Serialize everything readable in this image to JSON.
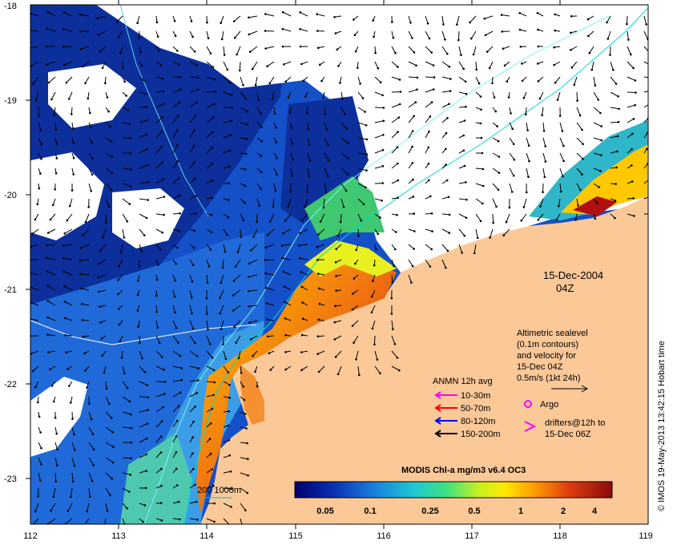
{
  "map": {
    "date_label": "15-Dec-2004",
    "time_label": "04Z",
    "credit": "© IMOS 19-May-2013 13:42:15 Hobart time",
    "x_ticks": [
      "112",
      "113",
      "114",
      "115",
      "116",
      "117",
      "118",
      "119"
    ],
    "y_ticks": [
      "-18",
      "-19",
      "-20",
      "-21",
      "-22",
      "-23"
    ]
  },
  "altimetry": {
    "line1": "Altimetric sealevel",
    "line2": "(0.1m contours)",
    "line3": "and velocity for",
    "line4": "15-Dec 04Z",
    "scale_label": "0.5m/s (1kt 24h)"
  },
  "anmn": {
    "title": "ANMN 12h avg",
    "items": [
      {
        "label": "10-30m",
        "color": "#ff00ff"
      },
      {
        "label": "50-70m",
        "color": "#ff0000"
      },
      {
        "label": "80-120m",
        "color": "#0000ff"
      },
      {
        "label": "150-200m",
        "color": "#000000"
      }
    ]
  },
  "argo": {
    "label": "Argo",
    "color": "#ff00ff"
  },
  "drifters": {
    "line1": "drifters@12h to",
    "line2": "15-Dec 06Z",
    "color": "#ff00ff"
  },
  "bathymetry": {
    "label": "200  1000m",
    "color": "#00c8c8"
  },
  "colorbar": {
    "title": "MODIS Chl-a mg/m3 v6.4 OC3",
    "ticks": [
      "0.05",
      "0.1",
      "0.25",
      "0.5",
      "1",
      "2",
      "4"
    ]
  },
  "colors": {
    "land": "#fbc898",
    "cloud": "#ffffff",
    "deep": "#0a2a9a",
    "ocean": "#1a5cd0",
    "coastal": "#e46010",
    "highchl": "#a01005"
  }
}
